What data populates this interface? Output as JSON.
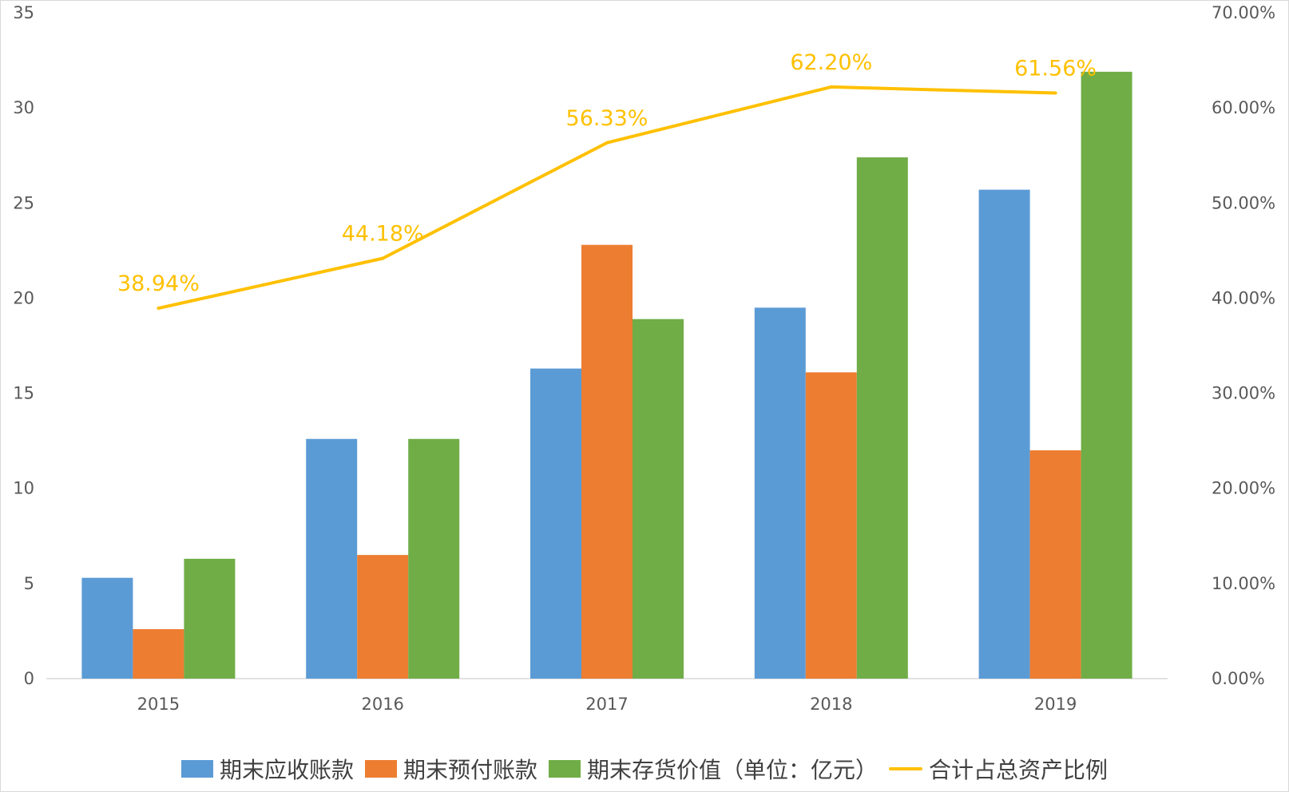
{
  "chart_data": {
    "type": "bar",
    "categories": [
      "2015",
      "2016",
      "2017",
      "2018",
      "2019"
    ],
    "series": [
      {
        "name": "期末应收账款",
        "kind": "bar",
        "axis": "left",
        "color": "#5B9BD5",
        "values": [
          5.3,
          12.6,
          16.3,
          19.5,
          25.7
        ]
      },
      {
        "name": "期末预付账款",
        "kind": "bar",
        "axis": "left",
        "color": "#ED7D31",
        "values": [
          2.6,
          6.5,
          22.8,
          16.1,
          12.0
        ]
      },
      {
        "name": "期末存货价值（单位：亿元）",
        "kind": "bar",
        "axis": "left",
        "color": "#70AD47",
        "values": [
          6.3,
          12.6,
          18.9,
          27.4,
          31.9
        ]
      },
      {
        "name": "合计占总资产比例",
        "kind": "line",
        "axis": "right",
        "color": "#FFC000",
        "values": [
          38.94,
          44.18,
          56.33,
          62.2,
          61.56
        ],
        "labels": [
          "38.94%",
          "44.18%",
          "56.33%",
          "62.20%",
          "61.56%"
        ]
      }
    ],
    "left_axis": {
      "ylim": [
        0,
        35
      ],
      "ticks": [
        "0",
        "5",
        "10",
        "15",
        "20",
        "25",
        "30",
        "35"
      ]
    },
    "right_axis": {
      "ylim": [
        0,
        70
      ],
      "ticks": [
        "0.00%",
        "10.00%",
        "20.00%",
        "30.00%",
        "40.00%",
        "50.00%",
        "60.00%",
        "70.00%"
      ]
    },
    "grid": false,
    "legend_position": "bottom"
  }
}
